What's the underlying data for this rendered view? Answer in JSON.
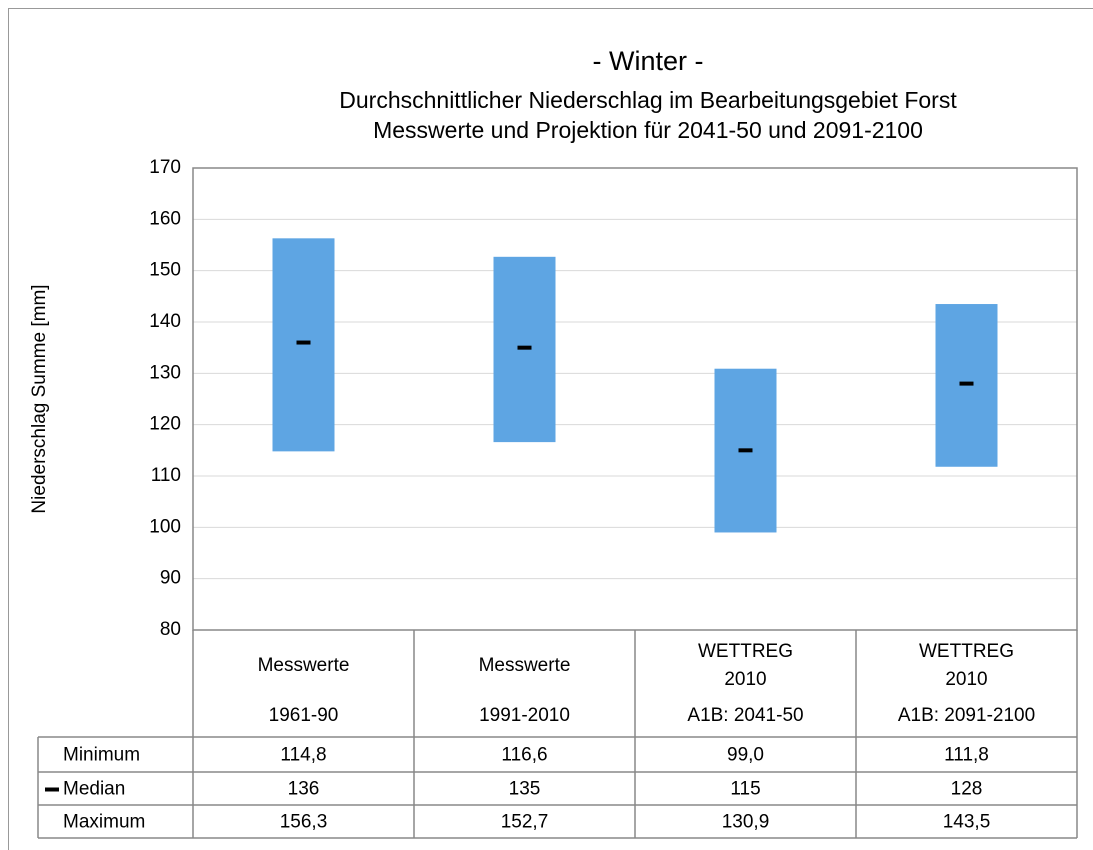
{
  "chart_data": {
    "type": "range",
    "title": "- Winter -",
    "subtitle": [
      "Durchschnittlicher Niederschlag im Bearbeitungsgebiet Forst",
      "Messwerte und Projektion für 2041-50 und 2091-2100"
    ],
    "y_label": "Niederschlag Summe [mm]",
    "categories": [
      [
        "Messwerte",
        "1961-90"
      ],
      [
        "Messwerte",
        "1991-2010"
      ],
      [
        "WETTREG 2010",
        "A1B: 2041-50"
      ],
      [
        "WETTREG 2010",
        "A1B: 2091-2100"
      ]
    ],
    "series": [
      {
        "name": "Minimum",
        "values": [
          114.8,
          116.6,
          99.0,
          111.8
        ],
        "value_labels": [
          "114,8",
          "116,6",
          "99,0",
          "111,8"
        ]
      },
      {
        "name": "Median",
        "color": "#000000",
        "values": [
          136,
          135,
          115,
          128
        ]
      },
      {
        "name": "Maximum",
        "values": [
          156.3,
          152.7,
          130.9,
          143.5
        ],
        "value_labels": [
          "156,3",
          "152,7",
          "130,9",
          "143,5"
        ]
      }
    ],
    "color": "#5ea5e3",
    "ylim": [
      80,
      170
    ],
    "yticks": [
      80,
      90,
      100,
      110,
      120,
      130,
      140,
      150,
      160,
      170
    ],
    "grid": true
  }
}
